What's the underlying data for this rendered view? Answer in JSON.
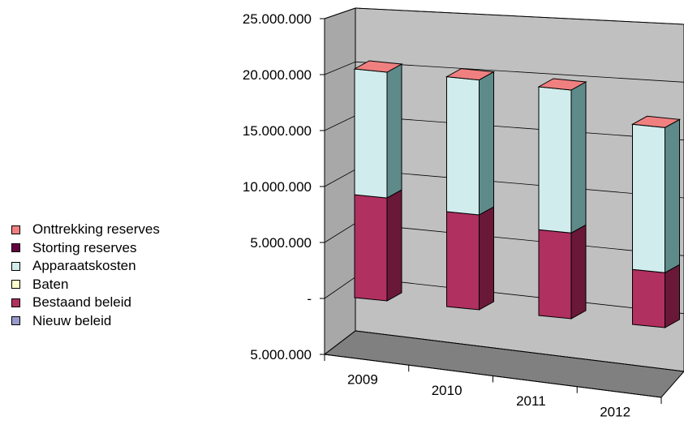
{
  "chart_data": {
    "type": "bar",
    "stacked": true,
    "three_d": true,
    "categories": [
      "2009",
      "2010",
      "2011",
      "2012"
    ],
    "y_tick_labels": [
      "25.000.000",
      "20.000.000",
      "15.000.000",
      "10.000.000",
      "5.000.000",
      "-",
      "5.000.000"
    ],
    "ylim": [
      -5000000,
      25000000
    ],
    "grid": true,
    "legend_position": "left",
    "series": [
      {
        "name": "Onttrekking reserves",
        "color": "#f08080",
        "values": [
          0,
          0,
          0,
          0
        ]
      },
      {
        "name": "Storting reserves",
        "color": "#660044",
        "values": [
          0,
          0,
          0,
          0
        ]
      },
      {
        "name": "Apparaatskosten",
        "color": "#d1ecec",
        "values": [
          11000000,
          11800000,
          12500000,
          12700000
        ]
      },
      {
        "name": "Baten",
        "color": "#ffffcc",
        "values": [
          0,
          0,
          0,
          0
        ]
      },
      {
        "name": "Bestaand beleid",
        "color": "#b03060",
        "values": [
          9000000,
          8300000,
          7500000,
          4800000
        ]
      },
      {
        "name": "Nieuw beleid",
        "color": "#9999cc",
        "values": [
          0,
          0,
          0,
          0
        ]
      }
    ],
    "colors": {
      "wall": "#c0c0c0",
      "floor": "#808080",
      "top_cap": "#f08080"
    }
  }
}
